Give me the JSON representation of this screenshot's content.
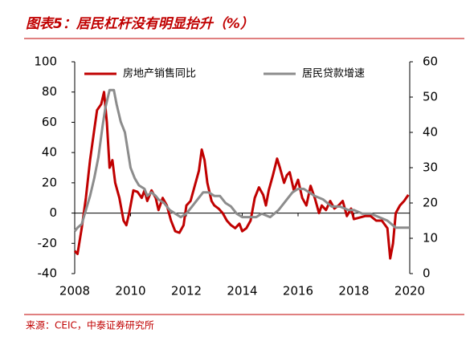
{
  "chart_data": {
    "type": "line",
    "title": "图表5：居民杠杆没有明显抬升（%）",
    "source": "来源：CEIC，中泰证券研究所",
    "legend": "top",
    "xlim": [
      2008,
      2020
    ],
    "xticks": [
      2008,
      2010,
      2012,
      2014,
      2016,
      2018,
      2020
    ],
    "ylim": [
      -40,
      100
    ],
    "yticks": [
      -40,
      -20,
      0,
      20,
      40,
      60,
      80,
      100
    ],
    "y2lim": [
      0,
      60
    ],
    "y2ticks": [
      0,
      10,
      20,
      30,
      40,
      50,
      60
    ],
    "series": [
      {
        "name": "房地产销售同比",
        "color": "#c00000",
        "x": [
          2008.0,
          2008.1,
          2008.25,
          2008.4,
          2008.55,
          2008.7,
          2008.8,
          2008.95,
          2009.05,
          2009.15,
          2009.25,
          2009.35,
          2009.45,
          2009.6,
          2009.75,
          2009.85,
          2009.95,
          2010.1,
          2010.25,
          2010.4,
          2010.5,
          2010.6,
          2010.75,
          2010.9,
          2011.0,
          2011.15,
          2011.3,
          2011.45,
          2011.6,
          2011.75,
          2011.9,
          2012.0,
          2012.15,
          2012.3,
          2012.45,
          2012.55,
          2012.65,
          2012.75,
          2012.9,
          2013.0,
          2013.15,
          2013.3,
          2013.45,
          2013.6,
          2013.75,
          2013.9,
          2014.0,
          2014.15,
          2014.3,
          2014.45,
          2014.6,
          2014.75,
          2014.85,
          2014.95,
          2015.1,
          2015.25,
          2015.35,
          2015.5,
          2015.6,
          2015.7,
          2015.85,
          2016.0,
          2016.15,
          2016.3,
          2016.45,
          2016.6,
          2016.75,
          2016.85,
          2017.0,
          2017.15,
          2017.3,
          2017.45,
          2017.6,
          2017.75,
          2017.9,
          2018.0,
          2018.2,
          2018.4,
          2018.6,
          2018.8,
          2019.0,
          2019.2,
          2019.3,
          2019.4,
          2019.5,
          2019.65,
          2019.8,
          2019.95
        ],
        "values": [
          -25,
          -27,
          -10,
          10,
          35,
          55,
          68,
          72,
          80,
          60,
          30,
          35,
          20,
          10,
          -5,
          -8,
          0,
          15,
          14,
          10,
          15,
          8,
          15,
          10,
          2,
          10,
          5,
          -5,
          -12,
          -13,
          -8,
          5,
          8,
          18,
          28,
          42,
          35,
          20,
          8,
          5,
          3,
          0,
          -5,
          -8,
          -10,
          -7,
          -12,
          -10,
          -5,
          10,
          17,
          12,
          5,
          15,
          25,
          36,
          30,
          20,
          25,
          27,
          15,
          22,
          10,
          5,
          18,
          10,
          0,
          5,
          2,
          8,
          3,
          5,
          8,
          -2,
          3,
          -4,
          -3,
          -2,
          -2,
          -5,
          -5,
          -10,
          -30,
          -20,
          0,
          5,
          8,
          12
        ]
      },
      {
        "name": "居民贷款增速",
        "color": "#8c8c8c",
        "axis": "y2",
        "x": [
          2008.0,
          2008.1,
          2008.25,
          2008.4,
          2008.55,
          2008.7,
          2008.85,
          2009.0,
          2009.1,
          2009.25,
          2009.4,
          2009.5,
          2009.65,
          2009.8,
          2009.9,
          2010.0,
          2010.15,
          2010.3,
          2010.5,
          2010.6,
          2010.75,
          2010.9,
          2011.0,
          2011.2,
          2011.4,
          2011.6,
          2011.8,
          2012.0,
          2012.2,
          2012.4,
          2012.6,
          2012.8,
          2013.0,
          2013.2,
          2013.4,
          2013.6,
          2013.8,
          2014.0,
          2014.2,
          2014.5,
          2014.7,
          2015.0,
          2015.3,
          2015.6,
          2015.8,
          2016.0,
          2016.2,
          2016.4,
          2016.6,
          2016.9,
          2017.2,
          2017.5,
          2017.8,
          2018.0,
          2018.3,
          2018.6,
          2018.9,
          2019.2,
          2019.5,
          2019.8,
          2020.0
        ],
        "values": [
          12,
          13,
          14,
          18,
          22,
          27,
          33,
          42,
          47,
          52,
          52,
          48,
          43,
          40,
          35,
          30,
          27,
          25,
          24,
          22,
          23,
          22,
          21,
          20,
          18,
          17,
          16,
          17,
          19,
          21,
          23,
          23,
          22,
          22,
          20,
          19,
          17,
          16,
          16,
          16,
          17,
          16,
          18,
          21,
          23,
          24,
          24,
          23,
          22,
          21,
          19,
          19,
          18,
          18,
          17,
          17,
          16,
          15,
          13,
          13,
          13
        ]
      }
    ]
  }
}
